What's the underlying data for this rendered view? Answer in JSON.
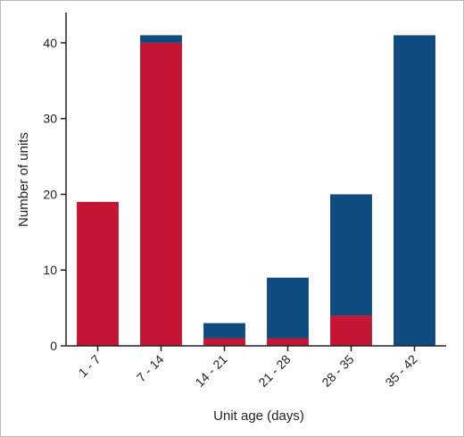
{
  "chart_data": {
    "type": "bar",
    "stacked": true,
    "title": "",
    "xlabel": "Unit age (days)",
    "ylabel": "Number of units",
    "categories": [
      "1 - 7",
      "7 - 14",
      "14 - 21",
      "21 - 28",
      "28 - 35",
      "35 - 42"
    ],
    "series": [
      {
        "color": "#c41534",
        "values": [
          19,
          40,
          1,
          1,
          4,
          0
        ]
      },
      {
        "color": "#0e4c80",
        "values": [
          0,
          1,
          2,
          8,
          16,
          41
        ]
      }
    ],
    "ylim": [
      0,
      44
    ],
    "yticks": [
      0,
      10,
      20,
      30,
      40
    ],
    "grid": false,
    "legend": "none"
  }
}
